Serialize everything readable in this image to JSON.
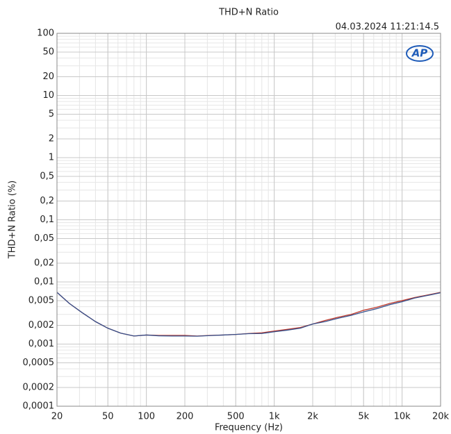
{
  "chart_data": {
    "type": "line",
    "title": "THD+N Ratio",
    "timestamp": "04.03.2024 11:21:14.5",
    "logo": "AP",
    "x_label": "Frequency (Hz)",
    "y_label": "THD+N Ratio (%)",
    "x": [
      20,
      25,
      31.5,
      40,
      50,
      63,
      80,
      100,
      125,
      160,
      200,
      250,
      315,
      400,
      500,
      630,
      800,
      1000,
      1250,
      1600,
      2000,
      2500,
      3150,
      4000,
      5000,
      6300,
      8000,
      10000,
      12500,
      16000,
      20000
    ],
    "series": [
      {
        "color": "#c0392b",
        "values": [
          0.0068,
          0.0045,
          0.0032,
          0.0023,
          0.0018,
          0.0015,
          0.00135,
          0.0014,
          0.00138,
          0.00138,
          0.00138,
          0.00135,
          0.00138,
          0.0014,
          0.00143,
          0.00148,
          0.00152,
          0.00162,
          0.00172,
          0.00185,
          0.0021,
          0.0024,
          0.0027,
          0.003,
          0.0035,
          0.0039,
          0.0045,
          0.005,
          0.0056,
          0.0062,
          0.0068
        ]
      },
      {
        "color": "#34508c",
        "values": [
          0.0068,
          0.0045,
          0.0032,
          0.0023,
          0.0018,
          0.0015,
          0.00135,
          0.0014,
          0.00136,
          0.00135,
          0.00135,
          0.00134,
          0.00137,
          0.0014,
          0.00143,
          0.00147,
          0.00148,
          0.00158,
          0.00167,
          0.0018,
          0.0021,
          0.0023,
          0.0026,
          0.0029,
          0.0033,
          0.0037,
          0.0043,
          0.0048,
          0.0055,
          0.0061,
          0.0067
        ]
      }
    ],
    "xlog": true,
    "ylog": true,
    "grid": true,
    "xlim": [
      20,
      20000
    ],
    "xticks": [
      20,
      50,
      100,
      200,
      500,
      {
        "value": 1000,
        "label": "1k"
      },
      {
        "value": 2000,
        "label": "2k"
      },
      {
        "value": 5000,
        "label": "5k"
      },
      {
        "value": 10000,
        "label": "10k"
      },
      {
        "value": 20000,
        "label": "20k"
      }
    ],
    "ylim": [
      0.0001,
      100
    ],
    "yticks": [
      {
        "value": 0.0001,
        "label": "0,0001"
      },
      {
        "value": 0.0002,
        "label": "0,0002"
      },
      {
        "value": 0.0005,
        "label": "0,0005"
      },
      {
        "value": 0.001,
        "label": "0,001"
      },
      {
        "value": 0.002,
        "label": "0,002"
      },
      {
        "value": 0.005,
        "label": "0,005"
      },
      {
        "value": 0.01,
        "label": "0,01"
      },
      {
        "value": 0.02,
        "label": "0,02"
      },
      {
        "value": 0.05,
        "label": "0,05"
      },
      {
        "value": 0.1,
        "label": "0,1"
      },
      {
        "value": 0.2,
        "label": "0,2"
      },
      {
        "value": 0.5,
        "label": "0,5"
      },
      1,
      2,
      5,
      10,
      20,
      50,
      100
    ]
  }
}
